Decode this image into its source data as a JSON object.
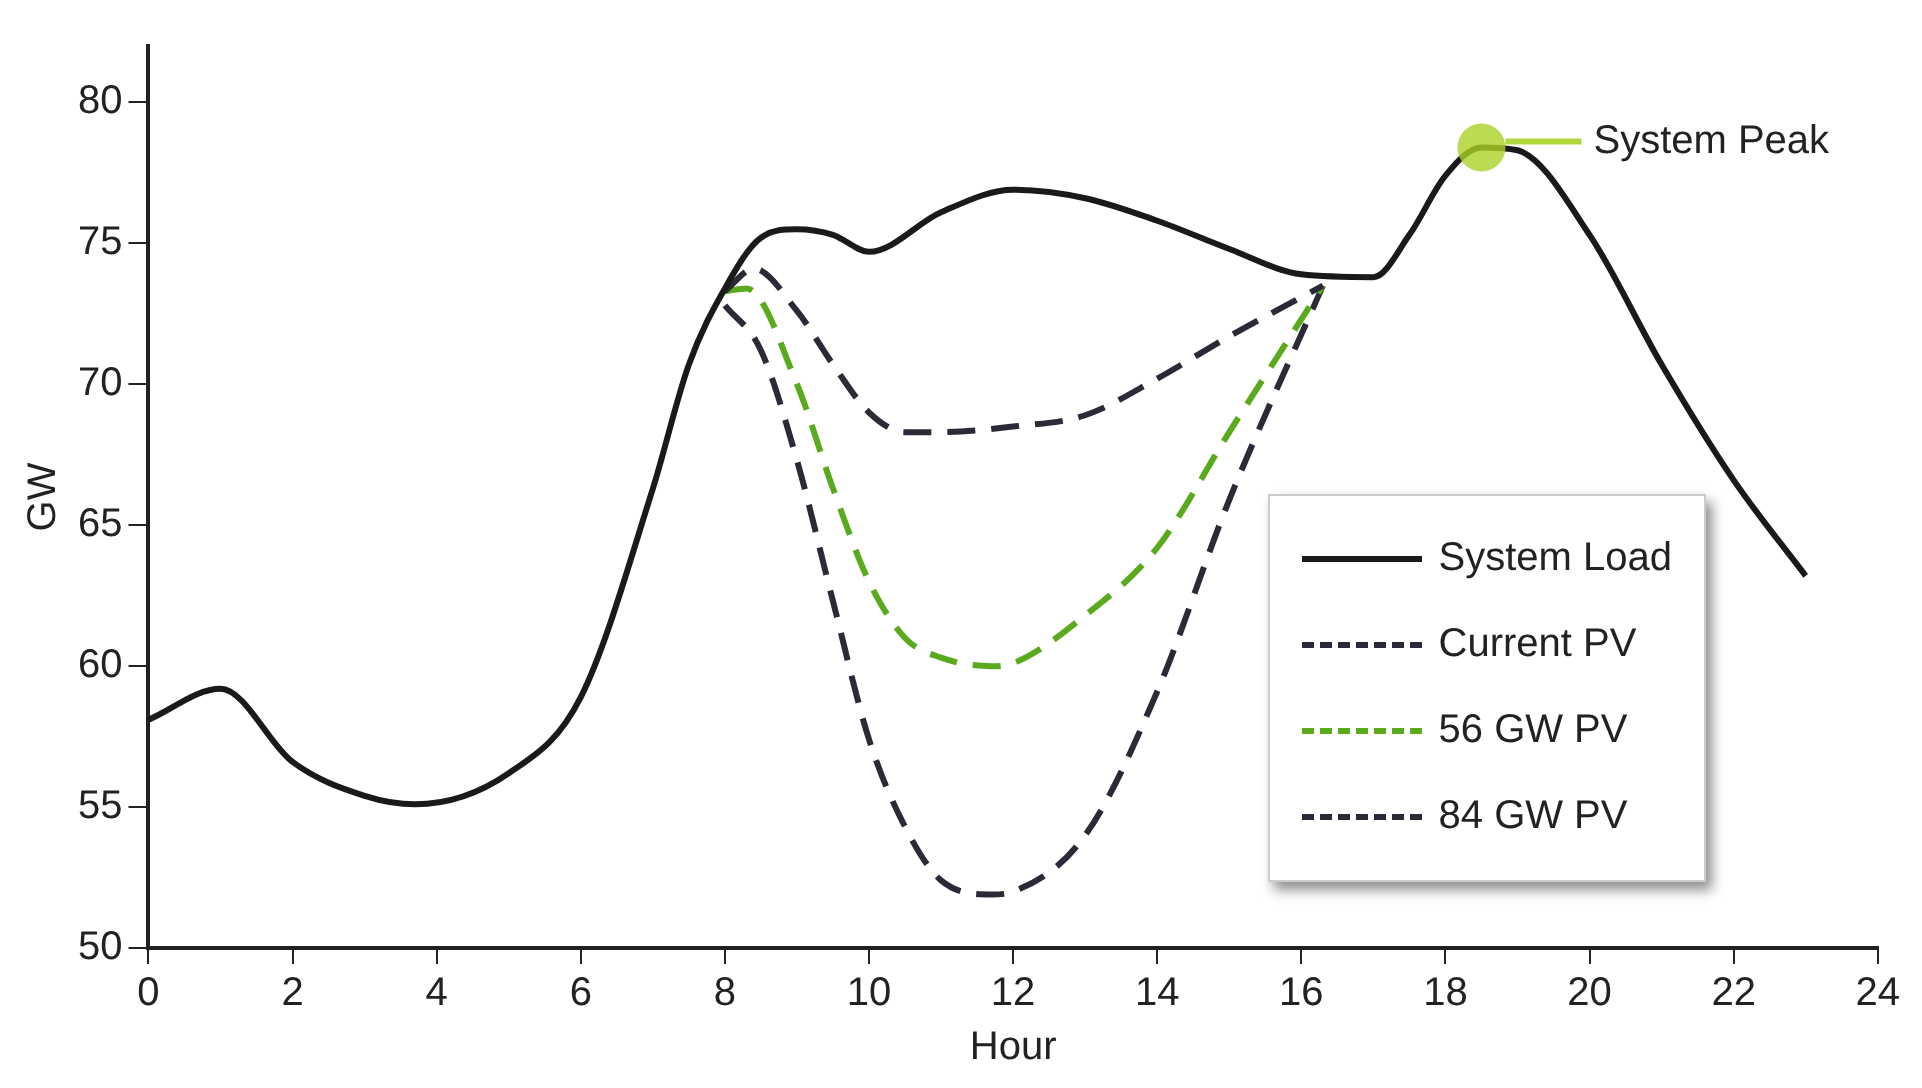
{
  "chart_data": {
    "type": "line",
    "xlabel": "Hour",
    "ylabel": "GW",
    "xlim": [
      0,
      24
    ],
    "xticks": [
      0,
      2,
      4,
      6,
      8,
      10,
      12,
      14,
      16,
      18,
      20,
      22,
      24
    ],
    "ylim": [
      50,
      82
    ],
    "yticks": [
      50,
      55,
      60,
      65,
      70,
      75,
      80
    ],
    "grid": false,
    "legend": "bottom right",
    "marker": "none",
    "annotations": [
      {
        "text": "System Peak",
        "x": 18.5,
        "y": 78.4
      }
    ],
    "series": [
      {
        "name": "System Load",
        "color": "#1a1a1a",
        "line_style": "solid",
        "x": [
          0,
          1,
          2,
          3,
          3.7,
          5,
          6,
          7,
          7.5,
          8,
          8.5,
          9,
          9.5,
          10,
          11,
          12,
          13,
          14,
          15,
          16,
          17,
          17.5,
          18,
          18.5,
          19,
          20,
          21,
          22,
          23
        ],
        "values": [
          58.1,
          59.2,
          56.6,
          55.4,
          55.1,
          56.2,
          58.9,
          66.3,
          70.7,
          73.4,
          75.2,
          75.5,
          75.3,
          74.7,
          76.1,
          76.9,
          76.6,
          75.8,
          74.8,
          73.9,
          73.8,
          75.3,
          77.4,
          78.4,
          78.3,
          75.3,
          70.7,
          66.6,
          63.2
        ]
      },
      {
        "name": "Current PV",
        "color": "#2a2a38",
        "line_style": "dashed",
        "x": [
          8,
          8.4,
          9,
          9.5,
          10,
          10.5,
          11,
          12,
          13,
          14,
          15,
          16.3
        ],
        "values": [
          73.3,
          74.1,
          72.6,
          70.7,
          69.0,
          68.3,
          68.3,
          68.5,
          68.9,
          70.2,
          71.7,
          73.5
        ]
      },
      {
        "name": "56 GW PV",
        "color": "#5aaa1e",
        "line_style": "dashed",
        "x": [
          8,
          8.3,
          9,
          9.5,
          10,
          10.5,
          11,
          11.7,
          12,
          13,
          14,
          15,
          16.3
        ],
        "values": [
          73.3,
          73.4,
          70.0,
          66.3,
          63.0,
          61.0,
          60.3,
          60.0,
          60.1,
          61.8,
          64.2,
          68.3,
          73.5
        ]
      },
      {
        "name": "84 GW PV",
        "color": "#2a2a38",
        "line_style": "dashed",
        "x": [
          8,
          8.5,
          9,
          9.5,
          10,
          10.5,
          11,
          11.7,
          12,
          13,
          14,
          15,
          16.3
        ],
        "values": [
          72.8,
          71.2,
          67.3,
          62.3,
          57.4,
          54.3,
          52.4,
          51.9,
          52.0,
          54.0,
          59.1,
          65.9,
          73.5
        ]
      }
    ]
  }
}
